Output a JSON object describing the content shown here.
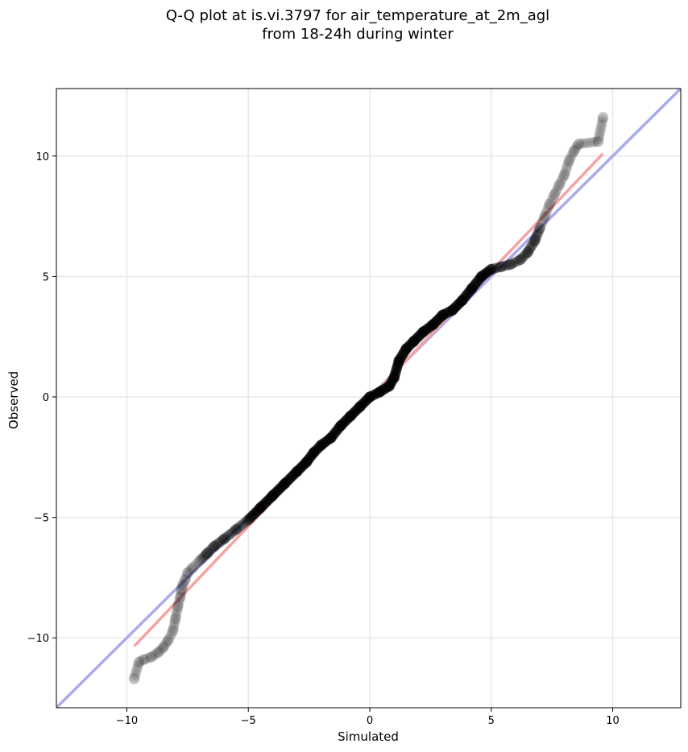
{
  "chart_data": {
    "type": "scatter",
    "title": "Q-Q plot at is.vi.3797 for air_temperature_at_2m_agl",
    "subtitle": "from 18-24h during winter",
    "xlabel": "Simulated",
    "ylabel": "Observed",
    "xlim": [
      -12.9,
      12.8
    ],
    "ylim": [
      -12.9,
      12.8
    ],
    "xticks": [
      -10,
      -5,
      0,
      5,
      10
    ],
    "yticks": [
      -10,
      -5,
      0,
      5,
      10
    ],
    "xtick_labels": [
      "−10",
      "−5",
      "0",
      "5",
      "10"
    ],
    "ytick_labels": [
      "−10",
      "−5",
      "0",
      "5",
      "10"
    ],
    "grid": true,
    "colors": {
      "points": "#000000",
      "identity_line": "#aaaaee",
      "fit_line": "#f4a3a3"
    },
    "reference_lines": [
      {
        "kind": "identity",
        "points": [
          [
            -12.9,
            -12.9
          ],
          [
            12.8,
            12.8
          ]
        ]
      },
      {
        "kind": "fit",
        "points": [
          [
            -9.7,
            -10.35
          ],
          [
            9.6,
            10.1
          ]
        ]
      }
    ],
    "quantiles": {
      "x": [
        -9.7,
        -9.5,
        -9.3,
        -9.0,
        -8.7,
        -8.5,
        -8.3,
        -8.1,
        -8.0,
        -7.9,
        -7.8,
        -7.75,
        -7.7,
        -7.6,
        -7.5,
        -7.3,
        -7.0,
        -6.7,
        -6.4,
        -6.0,
        -5.5,
        -5.0,
        -4.5,
        -4.0,
        -3.5,
        -3.0,
        -2.6,
        -2.3,
        -2.0,
        -1.6,
        -1.2,
        -0.8,
        -0.4,
        0.0,
        0.4,
        0.8,
        1.0,
        1.2,
        1.5,
        1.8,
        2.2,
        2.6,
        3.0,
        3.4,
        3.8,
        4.2,
        4.6,
        5.0,
        5.4,
        5.8,
        6.2,
        6.5,
        6.8,
        7.0,
        7.2,
        7.4,
        7.6,
        7.8,
        8.0,
        8.2,
        8.4,
        8.6,
        9.4,
        9.6
      ],
      "y": [
        -11.7,
        -11.0,
        -10.9,
        -10.8,
        -10.6,
        -10.4,
        -10.1,
        -9.7,
        -9.2,
        -8.7,
        -8.3,
        -8.0,
        -7.8,
        -7.6,
        -7.3,
        -7.1,
        -6.8,
        -6.5,
        -6.2,
        -5.9,
        -5.5,
        -5.1,
        -4.6,
        -4.1,
        -3.6,
        -3.1,
        -2.7,
        -2.3,
        -2.0,
        -1.7,
        -1.2,
        -0.8,
        -0.4,
        0.0,
        0.2,
        0.45,
        0.8,
        1.5,
        2.0,
        2.3,
        2.7,
        3.0,
        3.4,
        3.6,
        4.0,
        4.5,
        5.0,
        5.3,
        5.4,
        5.5,
        5.7,
        6.0,
        6.5,
        7.0,
        7.5,
        8.0,
        8.4,
        8.8,
        9.2,
        9.8,
        10.2,
        10.5,
        10.6,
        11.6
      ]
    }
  }
}
